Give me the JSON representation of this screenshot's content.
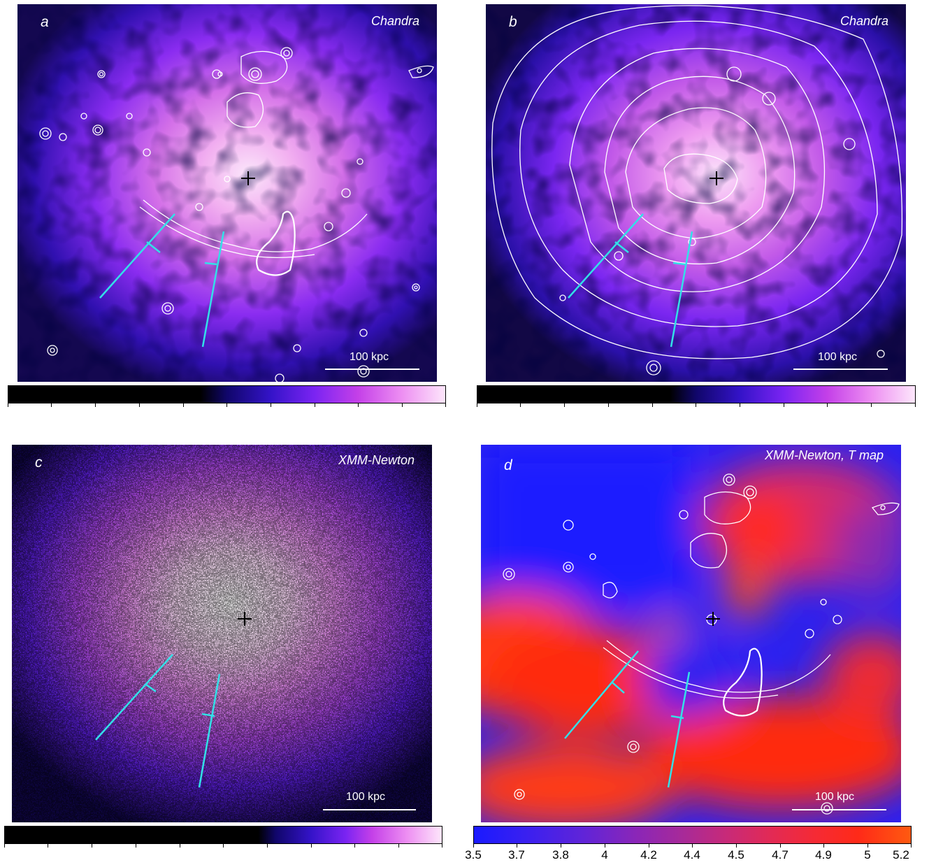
{
  "panels": {
    "a": {
      "label": "a",
      "instrument": "Chandra",
      "scale": "100 kpc"
    },
    "b": {
      "label": "b",
      "instrument": "Chandra",
      "scale": "100 kpc"
    },
    "c": {
      "label": "c",
      "instrument": "XMM-Newton",
      "scale": "100 kpc"
    },
    "d": {
      "label": "d",
      "instrument": "XMM-Newton, T map",
      "scale": "100 kpc"
    }
  },
  "colorbar_d": {
    "ticks": [
      "3.5",
      "3.7",
      "3.8",
      "4",
      "4.2",
      "4.4",
      "4.5",
      "4.7",
      "4.9",
      "5",
      "5.2"
    ]
  },
  "colors": {
    "cyan": "#33e0e8",
    "temp_low": "#1a1aff",
    "temp_high": "#ff2a10"
  }
}
